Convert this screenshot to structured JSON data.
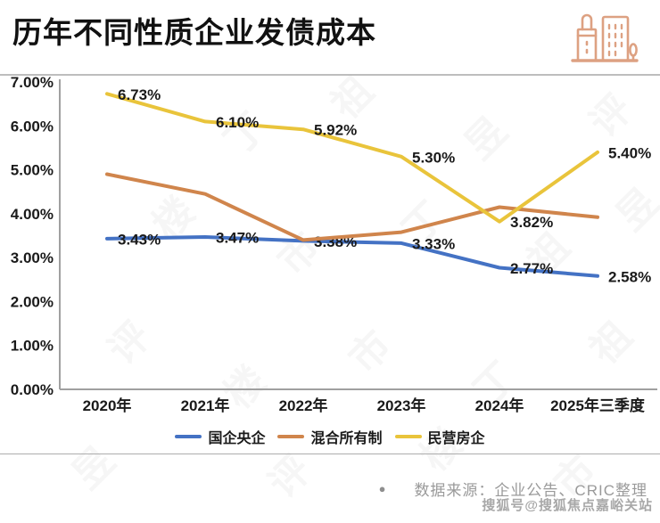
{
  "header": {
    "title": "历年不同性质企业发债成本",
    "icon": "buildings-icon",
    "icon_color": "#DDA182"
  },
  "chart_data": {
    "type": "line",
    "title": "历年不同性质企业发债成本",
    "categories": [
      "2020年",
      "2021年",
      "2022年",
      "2023年",
      "2024年",
      "2025年三季度"
    ],
    "yticks": [
      "0.00%",
      "1.00%",
      "2.00%",
      "3.00%",
      "4.00%",
      "5.00%",
      "6.00%",
      "7.00%"
    ],
    "ylim": [
      0,
      7
    ],
    "grid": false,
    "legend_position": "bottom",
    "axis_color": "#a0a0a0",
    "label_color": "#1a1a1a",
    "series": [
      {
        "name": "国企央企",
        "color": "#4472C4",
        "values": [
          3.43,
          3.47,
          3.38,
          3.33,
          2.77,
          2.58
        ],
        "data_labels": true
      },
      {
        "name": "混合所有制",
        "color": "#D0854C",
        "values": [
          4.9,
          4.45,
          3.4,
          3.58,
          4.15,
          3.92
        ],
        "data_labels": false
      },
      {
        "name": "民营房企",
        "color": "#E9C43B",
        "values": [
          6.73,
          6.1,
          5.92,
          5.3,
          3.82,
          5.4
        ],
        "data_labels": true
      }
    ]
  },
  "footer": {
    "bullet": "●",
    "source": "数据来源：企业公告、CRIC整理",
    "sohu_watermark": "搜狐号@搜狐焦点嘉峪关站"
  },
  "watermark_text": "丁祖昱评楼市"
}
